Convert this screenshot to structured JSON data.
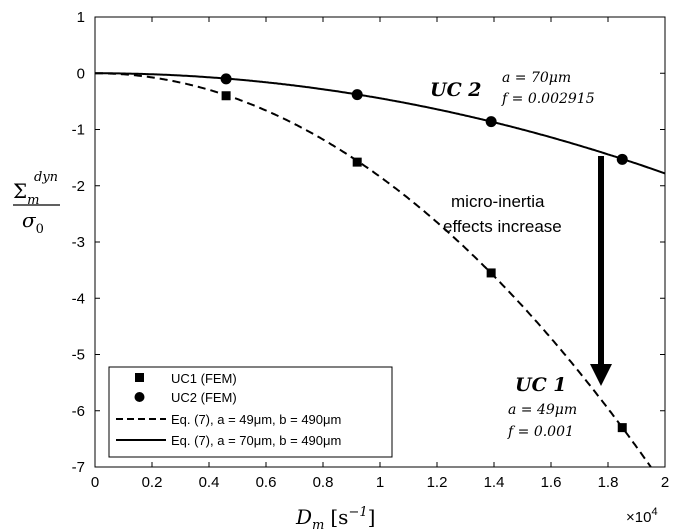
{
  "chart_data": {
    "type": "scatter",
    "x_multiplier_label": "×10",
    "x_multiplier_exponent": "4",
    "xlim": [
      0,
      2
    ],
    "ylim": [
      -7,
      1
    ],
    "x_ticks": [
      "0",
      "0.2",
      "0.4",
      "0.6",
      "0.8",
      "1",
      "1.2",
      "1.4",
      "1.6",
      "1.8",
      "2"
    ],
    "y_ticks": [
      "1",
      "0",
      "-1",
      "-2",
      "-3",
      "-4",
      "-5",
      "-6",
      "-7"
    ],
    "grid": false,
    "xlabel": {
      "main": "D",
      "sub": "m",
      "unit": "[s",
      "unit_exp": "−1",
      "unit_close": "]"
    },
    "ylabel": {
      "numer": "Σ",
      "numer_sub": "m",
      "numer_sup": "dyn",
      "denom": "σ",
      "denom_sub": "0"
    },
    "series": [
      {
        "name": "UC1 (FEM)",
        "kind": "markers",
        "marker": "square",
        "x": [
          0.46,
          0.92,
          1.39,
          1.85
        ],
        "y": [
          -0.4,
          -1.58,
          -3.55,
          -6.3
        ]
      },
      {
        "name": "UC2 (FEM)",
        "kind": "markers",
        "marker": "circle",
        "x": [
          0.46,
          0.92,
          1.39,
          1.85
        ],
        "y": [
          -0.1,
          -0.38,
          -0.86,
          -1.53
        ]
      },
      {
        "name": "Eq. (7), a = 49μm, b = 490μm",
        "kind": "line",
        "style": "dashed",
        "coef": -1.84
      },
      {
        "name": "Eq. (7), a = 70μm, b = 490μm",
        "kind": "line",
        "style": "solid",
        "coef": -0.445
      }
    ],
    "legend_position": "bottom-left",
    "annotations": {
      "uc2": {
        "title": "UC 2",
        "a": "a = 70μm",
        "f": "f = 0.002915"
      },
      "uc1": {
        "title": "UC 1",
        "a": "a = 49μm",
        "f": "f = 0.001"
      },
      "arrow_text_1": "micro-inertia",
      "arrow_text_2": "effects increase"
    }
  }
}
